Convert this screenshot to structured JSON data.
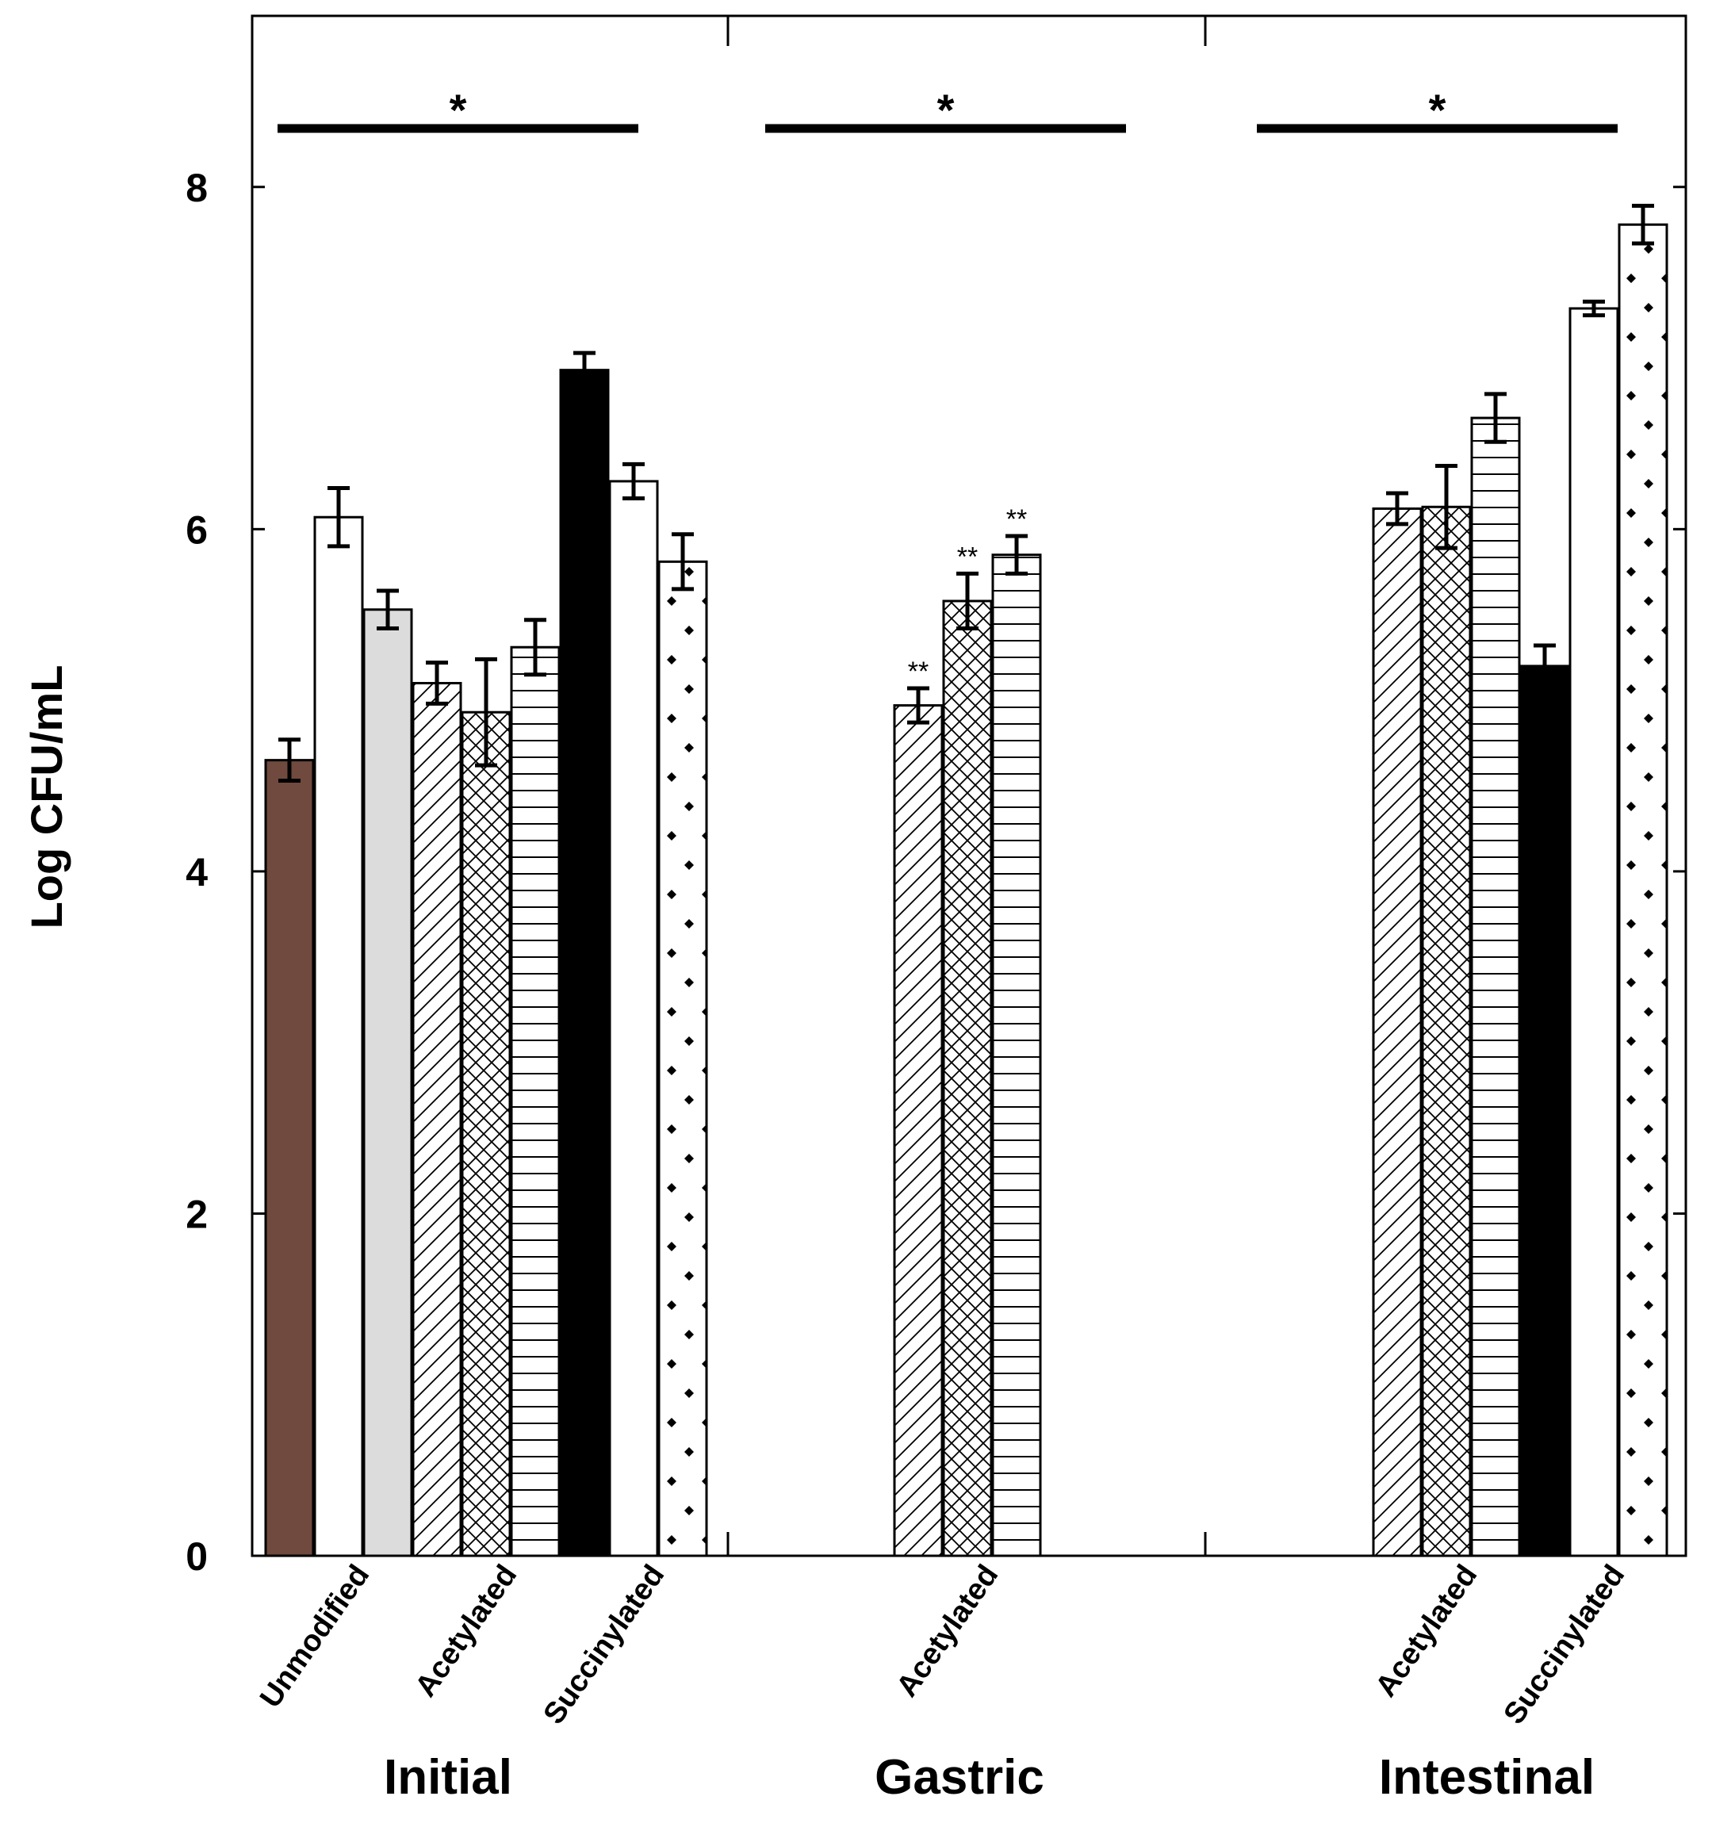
{
  "chart_data": {
    "type": "bar",
    "title": "",
    "xlabel": "",
    "ylabel": "Log CFU/mL",
    "ylim": [
      0,
      9
    ],
    "yticks": [
      "0",
      "2",
      "4",
      "6",
      "8"
    ],
    "grid": false,
    "legend": "none",
    "colors": {
      "brown": "#704a3e",
      "black": "#000000",
      "white": "#ffffff",
      "grey": "#dcdcdc"
    },
    "groups": [
      {
        "name": "Initial",
        "significance_label": "*",
        "tick_labels": [
          "Unmodified",
          "Acetylated",
          "Succinylated"
        ],
        "bars": [
          {
            "value": 4.65,
            "error": 0.12,
            "pattern": "brown",
            "star": ""
          },
          {
            "value": 6.07,
            "error": 0.17,
            "pattern": "white",
            "star": ""
          },
          {
            "value": 5.53,
            "error": 0.11,
            "pattern": "grey",
            "star": ""
          },
          {
            "value": 5.1,
            "error": 0.12,
            "pattern": "diagonal",
            "star": ""
          },
          {
            "value": 4.93,
            "error": 0.31,
            "pattern": "crosshatch",
            "star": ""
          },
          {
            "value": 5.31,
            "error": 0.16,
            "pattern": "horizontal",
            "star": ""
          },
          {
            "value": 6.93,
            "error": 0.1,
            "pattern": "black",
            "star": ""
          },
          {
            "value": 6.28,
            "error": 0.1,
            "pattern": "white",
            "star": ""
          },
          {
            "value": 5.81,
            "error": 0.16,
            "pattern": "dots",
            "star": ""
          }
        ]
      },
      {
        "name": "Gastric",
        "significance_label": "*",
        "tick_labels": [
          "Acetylated"
        ],
        "bars": [
          {
            "value": 4.97,
            "error": 0.1,
            "pattern": "diagonal",
            "star": "**"
          },
          {
            "value": 5.58,
            "error": 0.16,
            "pattern": "crosshatch",
            "star": "**"
          },
          {
            "value": 5.85,
            "error": 0.11,
            "pattern": "horizontal",
            "star": "**"
          }
        ]
      },
      {
        "name": "Intestinal",
        "significance_label": "*",
        "tick_labels": [
          "Acetylated",
          "Succinylated"
        ],
        "bars": [
          {
            "value": 6.12,
            "error": 0.09,
            "pattern": "diagonal",
            "star": ""
          },
          {
            "value": 6.13,
            "error": 0.24,
            "pattern": "crosshatch",
            "star": ""
          },
          {
            "value": 6.65,
            "error": 0.14,
            "pattern": "horizontal",
            "star": ""
          },
          {
            "value": 5.2,
            "error": 0.12,
            "pattern": "black",
            "star": ""
          },
          {
            "value": 7.29,
            "error": 0.04,
            "pattern": "white",
            "star": ""
          },
          {
            "value": 7.78,
            "error": 0.11,
            "pattern": "dots",
            "star": ""
          }
        ]
      }
    ]
  }
}
